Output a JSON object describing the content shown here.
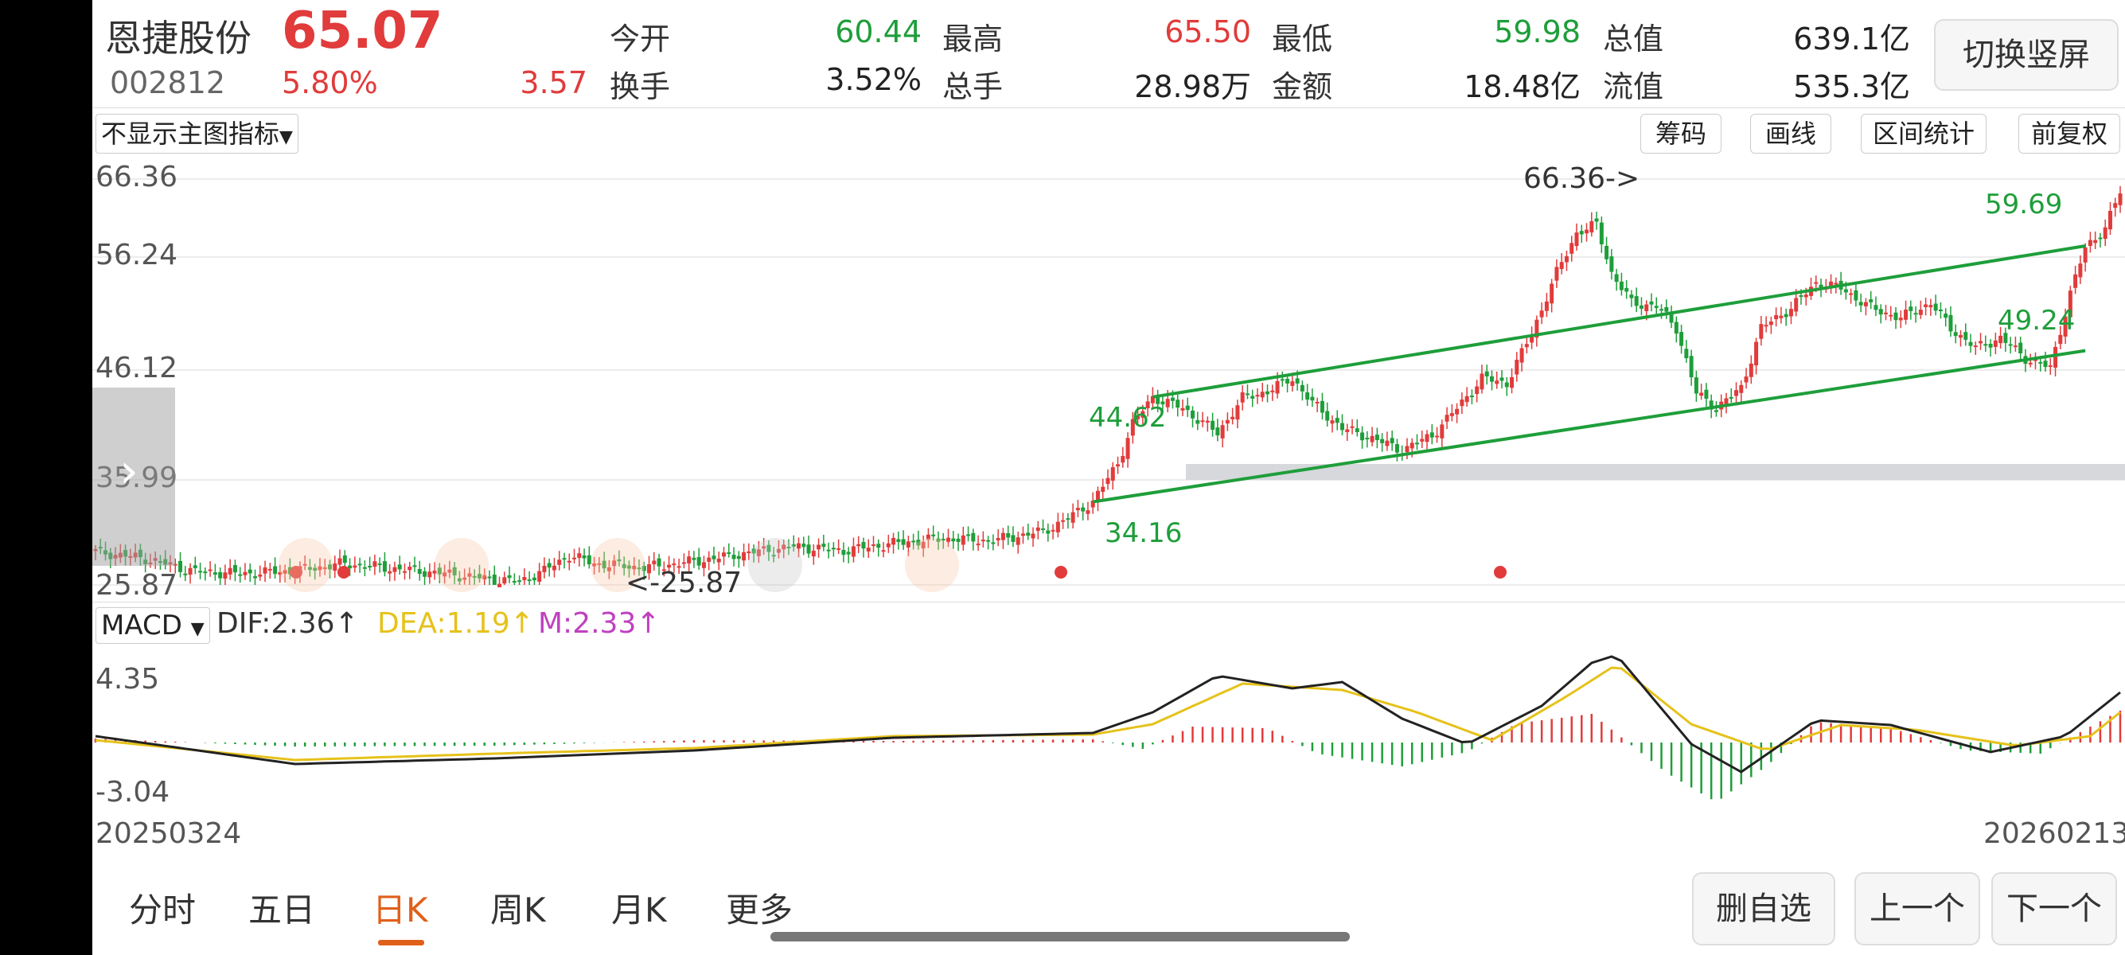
{
  "stock": {
    "name": "恩捷股份",
    "code": "002812",
    "price": "65.07",
    "change_pct": "5.80%",
    "change_amt": "3.57"
  },
  "quote": [
    {
      "label": "今开",
      "value": "60.44",
      "color": "#1e9e3a"
    },
    {
      "label": "最高",
      "value": "65.50",
      "color": "#e13b3b"
    },
    {
      "label": "最低",
      "value": "59.98",
      "color": "#1e9e3a"
    },
    {
      "label": "总值",
      "value": "639.1亿",
      "color": "#222222"
    },
    {
      "label": "换手",
      "value": "3.52%",
      "color": "#222222"
    },
    {
      "label": "总手",
      "value": "28.98万",
      "color": "#222222"
    },
    {
      "label": "金额",
      "value": "18.48亿",
      "color": "#222222"
    },
    {
      "label": "流值",
      "value": "535.3亿",
      "color": "#222222"
    }
  ],
  "toolbar": {
    "switch_portrait": "切换竖屏",
    "indicator_select": "不显示主图指标",
    "chips": "筹码",
    "draw_line": "画线",
    "range_stats": "区间统计",
    "adjust": "前复权"
  },
  "main_axis": [
    "66.36",
    "56.24",
    "46.12",
    "35.99",
    "25.87"
  ],
  "annotations": {
    "high": "66.36->",
    "low": "<-25.87",
    "line_top_left": "44.62",
    "line_top_right": "59.69",
    "line_bottom_left": "34.16",
    "line_bottom_right": "49.24"
  },
  "macd": {
    "selector": "MACD",
    "dif": "DIF:2.36↑",
    "dea": "DEA:1.19↑",
    "m": "M:2.33↑",
    "axis_top": "4.35",
    "axis_bottom": "-3.04"
  },
  "dates": {
    "start": "20250324",
    "end": "20260213"
  },
  "tabs": [
    "分时",
    "五日",
    "日K",
    "周K",
    "月K",
    "更多"
  ],
  "active_tab": 2,
  "actions": {
    "remove_watch": "删自选",
    "prev": "上一个",
    "next": "下一个"
  },
  "colors": {
    "up": "#e13b3b",
    "down": "#1e9e3a",
    "dea": "#e6c21a",
    "m": "#c040c0",
    "trend": "#1e9e3a"
  },
  "chart_data": [
    {
      "type": "candlestick",
      "title": "",
      "x": [
        "20250324",
        "20260213"
      ],
      "ylim": [
        25.87,
        66.36
      ],
      "price_waypoints": [
        [
          0,
          29.2
        ],
        [
          10,
          28.5
        ],
        [
          20,
          27.2
        ],
        [
          30,
          27.0
        ],
        [
          40,
          27.3
        ],
        [
          50,
          28.0
        ],
        [
          60,
          27.5
        ],
        [
          70,
          27.0
        ],
        [
          80,
          26.4
        ],
        [
          85,
          26.2
        ],
        [
          90,
          27.3
        ],
        [
          95,
          28.8
        ],
        [
          100,
          28.0
        ],
        [
          110,
          27.6
        ],
        [
          120,
          28.2
        ],
        [
          130,
          29.0
        ],
        [
          140,
          29.7
        ],
        [
          150,
          29.3
        ],
        [
          160,
          30.0
        ],
        [
          170,
          30.5
        ],
        [
          180,
          30.3
        ],
        [
          190,
          31.2
        ],
        [
          195,
          32.5
        ],
        [
          200,
          34.2
        ],
        [
          205,
          38.0
        ],
        [
          208,
          42.0
        ],
        [
          212,
          44.6
        ],
        [
          218,
          43.5
        ],
        [
          225,
          41.0
        ],
        [
          230,
          44.5
        ],
        [
          235,
          45.2
        ],
        [
          240,
          46.5
        ],
        [
          244,
          44.0
        ],
        [
          250,
          41.5
        ],
        [
          256,
          40.5
        ],
        [
          262,
          39.3
        ],
        [
          268,
          40.8
        ],
        [
          273,
          43.5
        ],
        [
          278,
          46.5
        ],
        [
          283,
          46.0
        ],
        [
          288,
          51.0
        ],
        [
          293,
          57.0
        ],
        [
          297,
          61.0
        ],
        [
          301,
          61.8
        ],
        [
          304,
          57.0
        ],
        [
          308,
          54.0
        ],
        [
          313,
          53.7
        ],
        [
          317,
          51.5
        ],
        [
          321,
          45.0
        ],
        [
          325,
          43.5
        ],
        [
          330,
          45.5
        ],
        [
          334,
          51.5
        ],
        [
          340,
          53.5
        ],
        [
          345,
          56.0
        ],
        [
          350,
          55.5
        ],
        [
          356,
          53.5
        ],
        [
          362,
          52.5
        ],
        [
          368,
          54.0
        ],
        [
          372,
          51.5
        ],
        [
          377,
          49.5
        ],
        [
          382,
          50.5
        ],
        [
          387,
          48.5
        ],
        [
          392,
          47.5
        ],
        [
          396,
          55.0
        ],
        [
          399,
          59.5
        ],
        [
          403,
          61.5
        ],
        [
          406,
          65.07
        ]
      ],
      "high": "66.36",
      "low": "25.87",
      "trend_lines": [
        {
          "start": [
            212,
            44.62
          ],
          "end": [
            399,
            59.69
          ]
        },
        {
          "start": [
            200,
            34.16
          ],
          "end": [
            399,
            49.24
          ]
        }
      ]
    },
    {
      "type": "macd",
      "series": [
        {
          "name": "DIF",
          "value": 2.36
        },
        {
          "name": "DEA",
          "value": 1.19
        },
        {
          "name": "M",
          "value": 2.33
        }
      ],
      "ylim": [
        -3.04,
        4.35
      ]
    }
  ]
}
